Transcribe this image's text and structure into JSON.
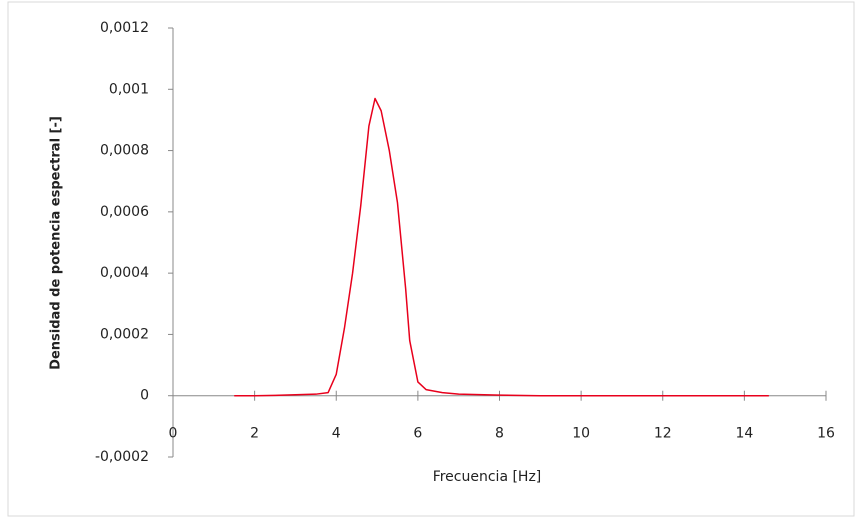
{
  "chart_data": {
    "type": "line",
    "x_label": "Frecuencia [Hz]",
    "y_label": "Densidad de potencia espectral [-]",
    "x": [
      1.5,
      2,
      2.5,
      3,
      3.5,
      3.8,
      4.0,
      4.2,
      4.4,
      4.6,
      4.8,
      4.95,
      5.1,
      5.3,
      5.5,
      5.7,
      5.8,
      6.0,
      6.2,
      6.6,
      7,
      8,
      9,
      10,
      12,
      14.6
    ],
    "series": [
      {
        "color": "#e8001c",
        "values": [
          0,
          0,
          1e-06,
          3e-06,
          5e-06,
          1e-05,
          7e-05,
          0.00022,
          0.0004,
          0.00062,
          0.00088,
          0.00097,
          0.00093,
          0.0008,
          0.00063,
          0.00035,
          0.00018,
          4.5e-05,
          2e-05,
          1e-05,
          5e-06,
          2e-06,
          0,
          0,
          0,
          0
        ]
      }
    ],
    "xlim": [
      0,
      16
    ],
    "xticks": [
      0,
      2,
      4,
      6,
      8,
      10,
      12,
      14,
      16
    ],
    "ylim": [
      -0.0002,
      0.0012
    ],
    "yticks": [
      {
        "value": -0.0002,
        "label": "-0,0002"
      },
      0,
      {
        "value": 0.0002,
        "label": "0,0002"
      },
      {
        "value": 0.0004,
        "label": "0,0004"
      },
      {
        "value": 0.0006,
        "label": "0,0006"
      },
      {
        "value": 0.0008,
        "label": "0,0008"
      },
      {
        "value": 0.001,
        "label": "0,001"
      },
      {
        "value": 0.0012,
        "label": "0,0012"
      }
    ],
    "grid": false
  }
}
